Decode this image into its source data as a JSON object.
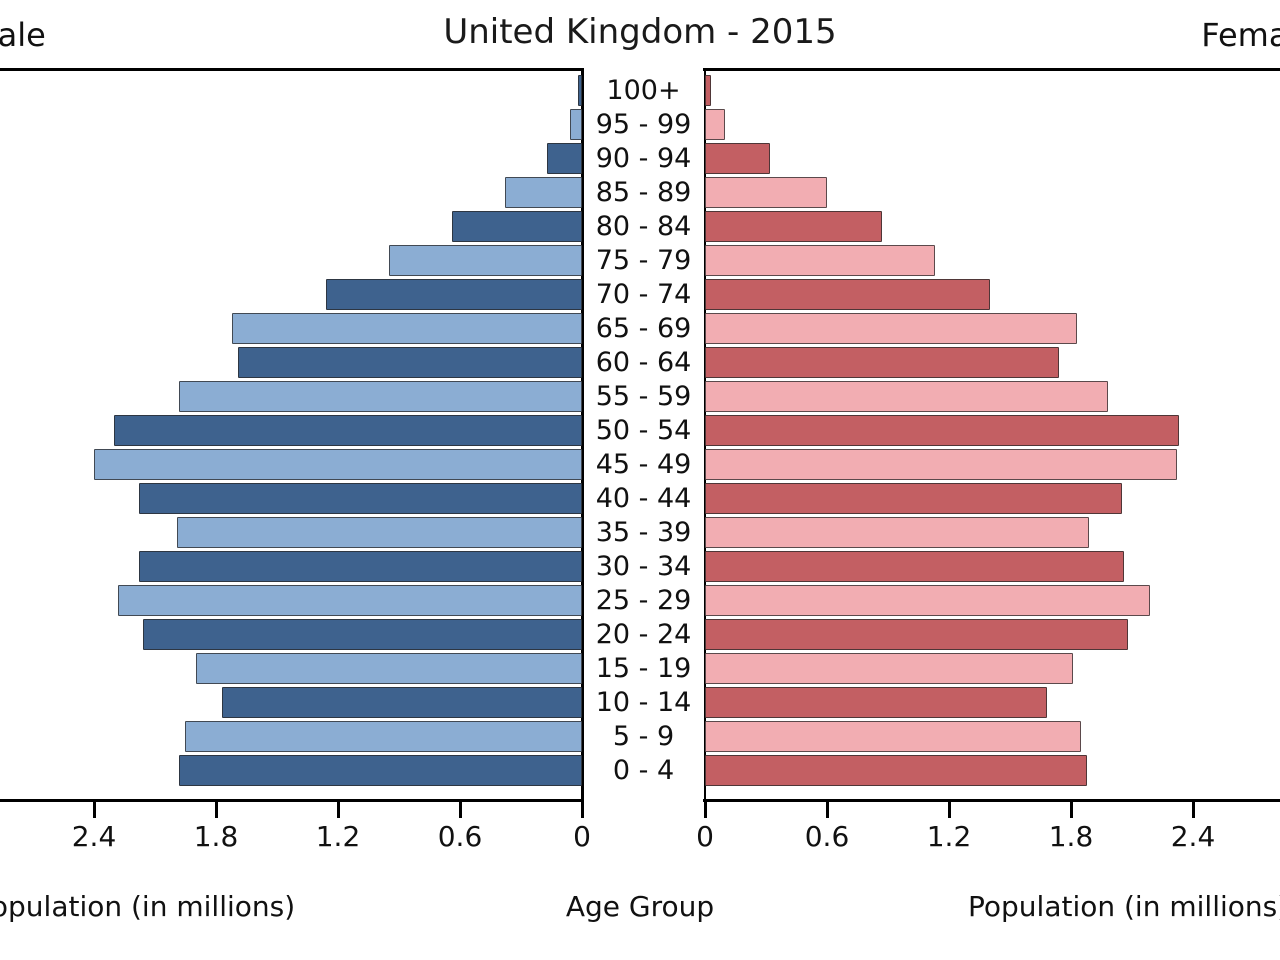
{
  "title": "United Kingdom - 2015",
  "headers": {
    "male": "Male",
    "female": "Female"
  },
  "axis": {
    "left_xlabel": "Population (in millions)",
    "right_xlabel": "Population (in millions)",
    "center_label": "Age Group",
    "left_ticks": [
      "2.4",
      "1.8",
      "1.2",
      "0.6",
      "0"
    ],
    "right_ticks": [
      "0",
      "0.6",
      "1.2",
      "1.8",
      "2.4"
    ]
  },
  "colors": {
    "male_dark": "#3e628e",
    "male_light": "#8badd3",
    "female_dark": "#c35f63",
    "female_light": "#f2adb2",
    "axis_line": "#000000",
    "text": "#111111",
    "background": "#ffffff"
  },
  "chart_data": {
    "type": "bar",
    "subtype": "population-pyramid",
    "title": "United Kingdom - 2015",
    "xlabel": "Population (in millions)",
    "ylabel": "Age Group",
    "xlim_each_side": [
      0,
      3.0
    ],
    "tick_step": 0.6,
    "grid": false,
    "legend_position": "top-corners",
    "categories_top_to_bottom": [
      "100+",
      "95 - 99",
      "90 - 94",
      "85 - 89",
      "80 - 84",
      "75 - 79",
      "70 - 74",
      "65 - 69",
      "60 - 64",
      "55 - 59",
      "50 - 54",
      "45 - 49",
      "40 - 44",
      "35 - 39",
      "30 - 34",
      "25 - 29",
      "20 - 24",
      "15 - 19",
      "10 - 14",
      "5 - 9",
      "0 - 4"
    ],
    "series": [
      {
        "name": "Male",
        "side": "left",
        "values": [
          0.02,
          0.06,
          0.17,
          0.38,
          0.64,
          0.95,
          1.26,
          1.72,
          1.69,
          1.98,
          2.3,
          2.4,
          2.18,
          1.99,
          2.18,
          2.28,
          2.16,
          1.9,
          1.77,
          1.95,
          1.98
        ]
      },
      {
        "name": "Female",
        "side": "right",
        "values": [
          0.03,
          0.1,
          0.32,
          0.6,
          0.87,
          1.13,
          1.4,
          1.83,
          1.74,
          1.98,
          2.33,
          2.32,
          2.05,
          1.89,
          2.06,
          2.19,
          2.08,
          1.81,
          1.68,
          1.85,
          1.88
        ]
      }
    ]
  }
}
